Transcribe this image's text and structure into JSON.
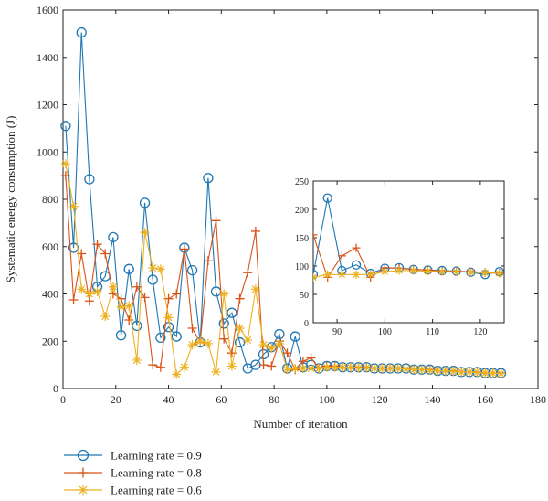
{
  "chart_data": {
    "type": "line",
    "xlabel": "Number of iteration",
    "ylabel": "Systematic energy consumption (J)",
    "xlim": [
      0,
      180
    ],
    "ylim": [
      0,
      1600
    ],
    "xticks": [
      "0",
      "20",
      "40",
      "60",
      "80",
      "100",
      "120",
      "140",
      "160",
      "180"
    ],
    "yticks": [
      "0",
      "200",
      "400",
      "600",
      "800",
      "1000",
      "1200",
      "1400",
      "1600"
    ],
    "legend_position": "bottom-left",
    "series": [
      {
        "name": "Learning rate = 0.9",
        "color": "#1f77b4",
        "marker": "circle",
        "x": [
          1,
          4,
          7,
          10,
          13,
          16,
          19,
          22,
          25,
          28,
          31,
          34,
          37,
          40,
          43,
          46,
          49,
          52,
          55,
          58,
          61,
          64,
          67,
          70,
          73,
          76,
          79,
          82,
          85,
          88,
          91,
          94,
          97,
          100,
          103,
          106,
          109,
          112,
          115,
          118,
          121,
          124,
          127,
          130,
          133,
          136,
          139,
          142,
          145,
          148,
          151,
          154,
          157,
          160,
          163,
          166
        ],
        "y": [
          1110,
          595,
          1505,
          885,
          430,
          475,
          640,
          225,
          505,
          265,
          785,
          460,
          215,
          260,
          220,
          595,
          500,
          195,
          890,
          410,
          275,
          320,
          195,
          85,
          100,
          145,
          175,
          230,
          85,
          220,
          90,
          100,
          85,
          95,
          95,
          90,
          90,
          90,
          90,
          85,
          85,
          85,
          85,
          85,
          80,
          80,
          80,
          75,
          75,
          75,
          70,
          70,
          70,
          65,
          65,
          65
        ]
      },
      {
        "name": "Learning rate = 0.8",
        "color": "#d95319",
        "marker": "plus",
        "x": [
          1,
          4,
          7,
          10,
          13,
          16,
          19,
          22,
          25,
          28,
          31,
          34,
          37,
          40,
          43,
          46,
          49,
          52,
          55,
          58,
          61,
          64,
          67,
          70,
          73,
          76,
          79,
          82,
          85,
          88,
          91,
          94,
          97,
          100,
          103,
          106,
          109,
          112,
          115,
          118,
          121,
          124,
          127,
          130,
          133,
          136,
          139,
          142,
          145,
          148,
          151,
          154,
          157,
          160,
          163,
          166
        ],
        "y": [
          900,
          375,
          570,
          370,
          610,
          570,
          400,
          380,
          290,
          430,
          385,
          100,
          90,
          380,
          400,
          590,
          255,
          195,
          540,
          710,
          210,
          150,
          380,
          490,
          665,
          100,
          95,
          200,
          150,
          80,
          115,
          130,
          85,
          95,
          95,
          90,
          90,
          90,
          90,
          85,
          85,
          85,
          85,
          85,
          80,
          80,
          80,
          75,
          75,
          75,
          70,
          70,
          70,
          65,
          65,
          65
        ]
      },
      {
        "name": "Learning rate = 0.6",
        "color": "#edb120",
        "marker": "star",
        "x": [
          1,
          4,
          7,
          10,
          13,
          16,
          19,
          22,
          25,
          28,
          31,
          34,
          37,
          40,
          43,
          46,
          49,
          52,
          55,
          58,
          61,
          64,
          67,
          70,
          73,
          76,
          79,
          82,
          85,
          88,
          91,
          94,
          97,
          100,
          103,
          106,
          109,
          112,
          115,
          118,
          121,
          124,
          127,
          130,
          133,
          136,
          139,
          142,
          145,
          148,
          151,
          154,
          157,
          160,
          163,
          166
        ],
        "y": [
          950,
          770,
          420,
          400,
          410,
          305,
          430,
          345,
          350,
          120,
          660,
          510,
          505,
          300,
          60,
          90,
          185,
          200,
          190,
          70,
          400,
          95,
          255,
          205,
          420,
          185,
          170,
          190,
          80,
          85,
          85,
          85,
          85,
          90,
          90,
          90,
          90,
          88,
          88,
          85,
          85,
          85,
          85,
          82,
          80,
          80,
          78,
          75,
          75,
          73,
          70,
          70,
          68,
          65,
          65,
          63
        ]
      }
    ],
    "inset": {
      "xlim": [
        85,
        125
      ],
      "ylim": [
        0,
        250
      ],
      "xticks": [
        "90",
        "100",
        "110",
        "120"
      ],
      "yticks": [
        "0",
        "50",
        "100",
        "150",
        "200",
        "250"
      ],
      "series": [
        {
          "name": "Learning rate = 0.9",
          "x": [
            85,
            88,
            91,
            94,
            97,
            100,
            103,
            106,
            109,
            112,
            115,
            118,
            121,
            124
          ],
          "y": [
            85,
            220,
            92,
            102,
            87,
            96,
            97,
            94,
            93,
            92,
            91,
            89,
            85,
            90
          ]
        },
        {
          "name": "Learning rate = 0.8",
          "x": [
            85,
            88,
            91,
            94,
            97,
            100,
            103,
            106,
            109,
            112,
            115,
            118,
            121,
            124
          ],
          "y": [
            155,
            80,
            118,
            132,
            80,
            97,
            96,
            94,
            93,
            91,
            91,
            90,
            89,
            88
          ]
        },
        {
          "name": "Learning rate = 0.6",
          "x": [
            85,
            88,
            91,
            94,
            97,
            100,
            103,
            106,
            109,
            112,
            115,
            118,
            121,
            124
          ],
          "y": [
            80,
            85,
            85,
            85,
            85,
            90,
            92,
            92,
            91,
            90,
            90,
            89,
            88,
            87
          ]
        }
      ]
    }
  }
}
